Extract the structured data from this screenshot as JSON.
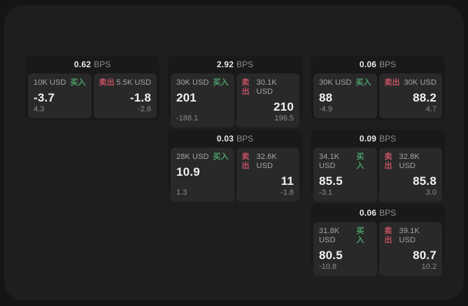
{
  "labels": {
    "bps_suffix": "BPS",
    "buy": "买入",
    "sell": "卖出"
  },
  "colors": {
    "bg_outer": "#151515",
    "bg_window": "#1e1e1e",
    "bg_card": "#191919",
    "bg_panel": "#292929",
    "buy": "#4c9f6a",
    "sell": "#c05263"
  },
  "cards": [
    {
      "col": 1,
      "row": 1,
      "bps": "0.62",
      "buy": {
        "amount": "10K USD",
        "value": "-3.7",
        "delta": "4.3"
      },
      "sell": {
        "amount": "5.5K USD",
        "value": "-1.8",
        "delta": "-2.6"
      }
    },
    {
      "col": 2,
      "row": 1,
      "bps": "2.92",
      "buy": {
        "amount": "30K USD",
        "value": "201",
        "delta": "-188.1"
      },
      "sell": {
        "amount": "30.1K USD",
        "value": "210",
        "delta": "196.5"
      }
    },
    {
      "col": 3,
      "row": 1,
      "bps": "0.06",
      "buy": {
        "amount": "30K USD",
        "value": "88",
        "delta": "-4.9"
      },
      "sell": {
        "amount": "30K USD",
        "value": "88.2",
        "delta": "4.7"
      }
    },
    {
      "col": 2,
      "row": 2,
      "bps": "0.03",
      "buy": {
        "amount": "28K USD",
        "value": "10.9",
        "delta": "1.3"
      },
      "sell": {
        "amount": "32.6K USD",
        "value": "11",
        "delta": "-1.8"
      }
    },
    {
      "col": 3,
      "row": 2,
      "bps": "0.09",
      "buy": {
        "amount": "34.1K USD",
        "value": "85.5",
        "delta": "-3.1"
      },
      "sell": {
        "amount": "32.8K USD",
        "value": "85.8",
        "delta": "3.0"
      }
    },
    {
      "col": 3,
      "row": 3,
      "bps": "0.06",
      "buy": {
        "amount": "31.8K USD",
        "value": "80.5",
        "delta": "-10.8"
      },
      "sell": {
        "amount": "39.1K USD",
        "value": "80.7",
        "delta": "10.2"
      }
    }
  ]
}
